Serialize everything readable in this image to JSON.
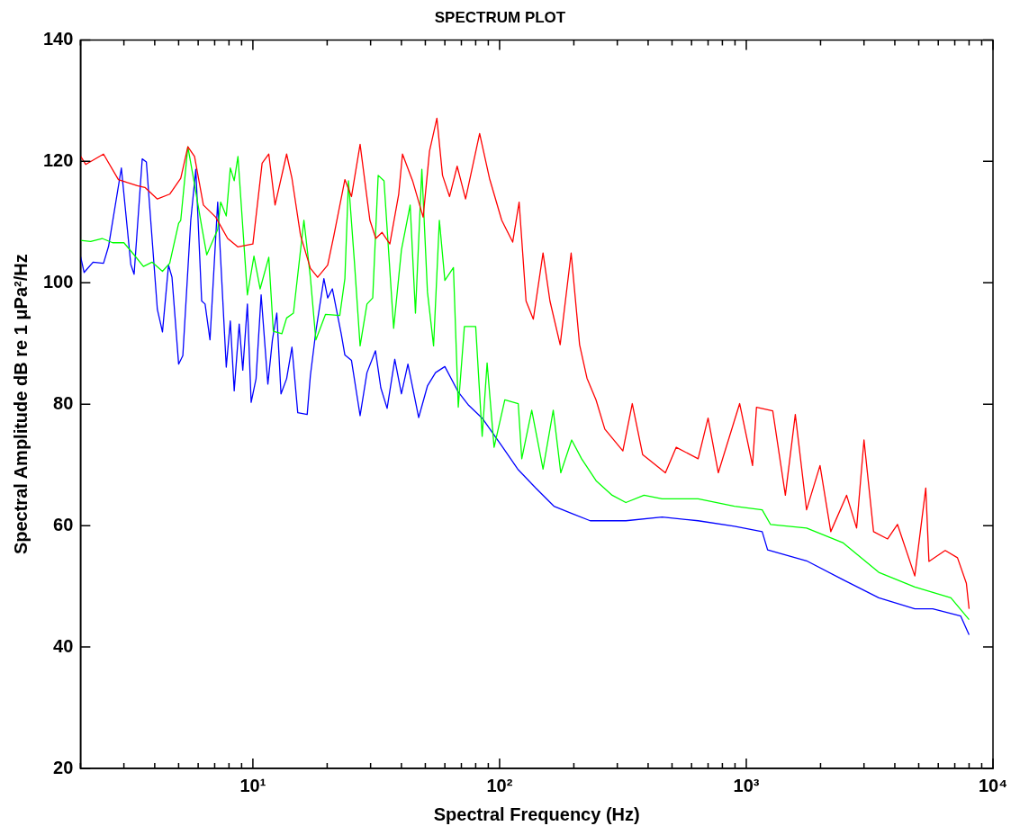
{
  "chart_data": {
    "type": "line",
    "title": "SPECTRUM PLOT",
    "xlabel": "Spectral Frequency (Hz)",
    "ylabel": "Spectral Amplitude dB re 1 μPa²/Hz",
    "log": "x",
    "xlim": [
      2,
      10000
    ],
    "xticks": [
      {
        "value": 2,
        "label": null
      },
      {
        "value": 3,
        "label": null
      },
      {
        "value": 4,
        "label": null
      },
      {
        "value": 5,
        "label": null
      },
      {
        "value": 6,
        "label": null
      },
      {
        "value": 7,
        "label": null
      },
      {
        "value": 8,
        "label": null
      },
      {
        "value": 9,
        "label": null
      },
      {
        "value": 10,
        "label": "10¹"
      },
      {
        "value": 20,
        "label": null
      },
      {
        "value": 30,
        "label": null
      },
      {
        "value": 40,
        "label": null
      },
      {
        "value": 50,
        "label": null
      },
      {
        "value": 60,
        "label": null
      },
      {
        "value": 70,
        "label": null
      },
      {
        "value": 80,
        "label": null
      },
      {
        "value": 90,
        "label": null
      },
      {
        "value": 100,
        "label": "10²"
      },
      {
        "value": 200,
        "label": null
      },
      {
        "value": 300,
        "label": null
      },
      {
        "value": 400,
        "label": null
      },
      {
        "value": 500,
        "label": null
      },
      {
        "value": 600,
        "label": null
      },
      {
        "value": 700,
        "label": null
      },
      {
        "value": 800,
        "label": null
      },
      {
        "value": 900,
        "label": null
      },
      {
        "value": 1000,
        "label": "10³"
      },
      {
        "value": 2000,
        "label": null
      },
      {
        "value": 3000,
        "label": null
      },
      {
        "value": 4000,
        "label": null
      },
      {
        "value": 5000,
        "label": null
      },
      {
        "value": 6000,
        "label": null
      },
      {
        "value": 7000,
        "label": null
      },
      {
        "value": 8000,
        "label": null
      },
      {
        "value": 9000,
        "label": null
      },
      {
        "value": 10000,
        "label": "10⁴"
      }
    ],
    "ylim": [
      20,
      140
    ],
    "yticks": [
      20,
      40,
      60,
      80,
      100,
      120,
      140
    ],
    "series": [
      {
        "color": "#ff0000",
        "x": [
          2.0,
          2.1,
          2.48,
          2.85,
          3.1,
          3.4,
          3.65,
          4.1,
          4.6,
          5.1,
          5.45,
          5.8,
          6.3,
          7.07,
          7.9,
          8.7,
          10,
          10.9,
          11.6,
          12.3,
          13.7,
          14.4,
          15.6,
          17.1,
          18.3,
          20.1,
          21.3,
          23.6,
          25.1,
          27.2,
          29.8,
          31.5,
          33.4,
          35.9,
          39,
          40.4,
          44.4,
          49,
          52,
          55.7,
          58.7,
          62.7,
          67.3,
          72.8,
          83,
          91,
          102,
          113,
          120,
          128,
          137,
          150,
          160,
          176,
          195,
          211,
          226,
          246,
          267,
          316,
          345,
          380,
          470,
          520,
          638,
          700,
          770,
          940,
          1060,
          1100,
          1280,
          1440,
          1580,
          1755,
          1990,
          2200,
          2550,
          2800,
          3000,
          3280,
          3740,
          4100,
          4820,
          5340,
          5500,
          6400,
          7180,
          7800,
          8000
        ],
        "values": [
          120.9,
          119.5,
          121.2,
          117,
          116.5,
          116,
          115.7,
          113.8,
          114.6,
          117.2,
          122.4,
          120.8,
          112.8,
          110.8,
          107.3,
          105.9,
          106.4,
          119.7,
          121.2,
          112.8,
          121.2,
          117.2,
          107.8,
          102.4,
          100.9,
          102.9,
          107.8,
          117,
          114.2,
          122.8,
          110.3,
          107.3,
          108.3,
          106.4,
          114.6,
          121.2,
          116.8,
          110.8,
          121.7,
          127.1,
          117.7,
          114.2,
          119.2,
          113.8,
          124.6,
          117.2,
          110.3,
          106.7,
          113.3,
          97,
          94,
          104.9,
          97,
          89.8,
          104.9,
          89.8,
          84.3,
          80.7,
          75.9,
          72.3,
          80.1,
          71.7,
          68.7,
          72.9,
          71,
          77.7,
          68.7,
          80.1,
          69.9,
          79.5,
          78.9,
          65,
          78.3,
          62.6,
          69.9,
          59,
          65,
          59.6,
          74.1,
          59,
          57.8,
          60.2,
          51.7,
          66.2,
          54.1,
          55.9,
          54.7,
          50.5,
          46.3
        ]
      },
      {
        "color": "#00ff00",
        "x": [
          2.0,
          2.2,
          2.45,
          2.7,
          3.0,
          3.3,
          3.6,
          3.9,
          4.3,
          4.6,
          5.0,
          5.1,
          5.45,
          5.8,
          6.2,
          6.5,
          7.2,
          7.4,
          7.8,
          8.1,
          8.4,
          8.7,
          9.5,
          10.1,
          10.7,
          11.6,
          12.1,
          13.1,
          13.7,
          14.6,
          16.1,
          17.1,
          18,
          19.7,
          22.5,
          23.6,
          24.4,
          25.8,
          27.2,
          29,
          30.6,
          32.2,
          34,
          37.2,
          40,
          43.4,
          45.6,
          48.4,
          51,
          54,
          57,
          60,
          65,
          68,
          72,
          80,
          85,
          89,
          95,
          105,
          119,
          123,
          135,
          150,
          165,
          177,
          196,
          215,
          246,
          286,
          325,
          385,
          456,
          638,
          895,
          1160,
          1253,
          1755,
          2460,
          3444,
          4820,
          6750,
          8000
        ],
        "values": [
          107,
          106.8,
          107.3,
          106.6,
          106.6,
          104.6,
          102.7,
          103.4,
          101.9,
          103.2,
          109.8,
          110.3,
          122.4,
          116.2,
          109.3,
          104.6,
          108.8,
          113.3,
          111,
          118.9,
          116.8,
          120.8,
          98,
          104.4,
          99,
          104.2,
          92,
          91.6,
          94.2,
          95,
          110.3,
          100.9,
          90.6,
          94.8,
          94.6,
          100.7,
          116.8,
          103.4,
          89.6,
          96.5,
          97.5,
          117.7,
          116.8,
          92.5,
          105.4,
          112.8,
          95,
          118.7,
          98.5,
          89.6,
          110.3,
          100.4,
          102.5,
          79.5,
          92.8,
          92.8,
          74.7,
          86.8,
          72.9,
          80.7,
          80.1,
          71,
          79,
          69.3,
          79,
          68.7,
          74.1,
          71,
          67.4,
          65,
          63.8,
          65,
          64.4,
          64.4,
          63.2,
          62.6,
          60.2,
          59.6,
          57.2,
          52.3,
          49.9,
          48.1,
          44.5
        ]
      },
      {
        "color": "#0000ff",
        "x": [
          2.0,
          2.07,
          2.25,
          2.48,
          2.6,
          2.93,
          3.2,
          3.3,
          3.56,
          3.7,
          4.1,
          4.3,
          4.55,
          4.7,
          5.0,
          5.2,
          5.6,
          5.87,
          6.2,
          6.4,
          6.7,
          7.2,
          7.8,
          8.1,
          8.4,
          8.8,
          9.1,
          9.5,
          9.84,
          10.3,
          10.8,
          11.5,
          12,
          12.5,
          13,
          13.7,
          14.4,
          15.2,
          16.6,
          17.1,
          18,
          19.4,
          20.1,
          21,
          22.8,
          23.6,
          25.1,
          27.2,
          29,
          31.4,
          33,
          35,
          37.6,
          40,
          42.5,
          47,
          51,
          55,
          60,
          68,
          75,
          85,
          103,
          119,
          140,
          166,
          196,
          233,
          325,
          456,
          638,
          895,
          1160,
          1220,
          1755,
          2460,
          3444,
          4820,
          5700,
          7400,
          8000
        ],
        "values": [
          104.4,
          101.7,
          103.4,
          103.2,
          106,
          118.9,
          103,
          101.4,
          120.4,
          119.9,
          95.6,
          91.9,
          102.9,
          100.9,
          86.6,
          88,
          110.3,
          118.7,
          97,
          96.5,
          90.6,
          113.3,
          86.1,
          93.7,
          82.2,
          93.2,
          85.6,
          96.5,
          80.3,
          84.2,
          98,
          83.3,
          90.6,
          95,
          81.7,
          84.2,
          89.4,
          78.6,
          78.3,
          84.7,
          92,
          100.7,
          97.5,
          99,
          91.6,
          88.1,
          87.2,
          78.1,
          85.2,
          88.8,
          82.7,
          79.3,
          87.4,
          81.7,
          86.6,
          77.8,
          83,
          85.2,
          86.2,
          82,
          79.8,
          77.7,
          72.9,
          69.2,
          66.2,
          63.2,
          62,
          60.8,
          60.8,
          61.4,
          60.8,
          59.9,
          59,
          56,
          54.2,
          51.1,
          48.1,
          46.3,
          46.3,
          45.1,
          42
        ]
      }
    ]
  }
}
